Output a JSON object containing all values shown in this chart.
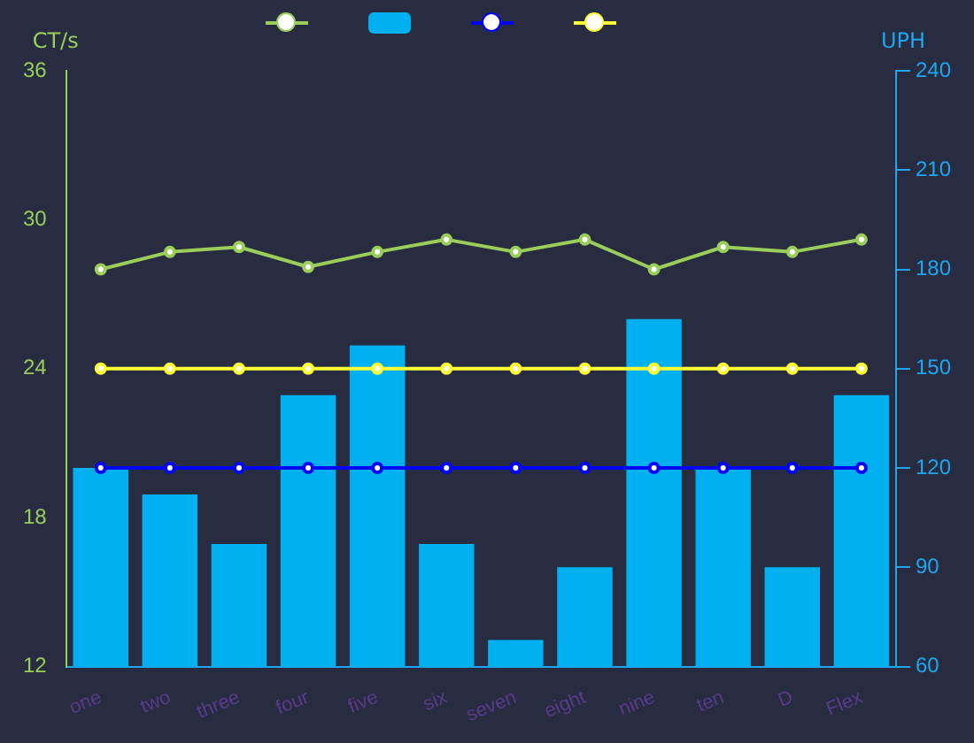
{
  "chart_data": {
    "type": "bar",
    "categories": [
      "one",
      "two",
      "three",
      "four",
      "five",
      "six",
      "seven",
      "eight",
      "nine",
      "ten",
      "D",
      "Flex"
    ],
    "series": [
      {
        "type": "line",
        "color": "#9acd5a",
        "values": [
          28,
          28.7,
          28.9,
          28.1,
          28.7,
          29.2,
          28.7,
          29.2,
          28,
          28.9,
          28.7,
          29.2
        ]
      },
      {
        "axis": "y2",
        "color": "#00b0f0",
        "values": [
          120,
          112,
          97,
          142,
          157,
          97,
          68,
          90,
          165,
          120,
          90,
          142
        ]
      },
      {
        "type": "line",
        "color": "#0000ff",
        "values": [
          20,
          20,
          20,
          20,
          20,
          20,
          20,
          20,
          20,
          20,
          20,
          20
        ]
      },
      {
        "type": "line",
        "color": "#ffff33",
        "values": [
          24,
          24,
          24,
          24,
          24,
          24,
          24,
          24,
          24,
          24,
          24,
          24
        ]
      }
    ],
    "ylabel": "CT/s",
    "y2label": "UPH",
    "ylim": [
      12,
      36
    ],
    "yticks": [
      12,
      18,
      24,
      30,
      36
    ],
    "y2lim": [
      60,
      240
    ],
    "y2ticks": [
      60,
      90,
      120,
      150,
      180,
      210,
      240
    ],
    "grid": false,
    "marker": "circle"
  }
}
